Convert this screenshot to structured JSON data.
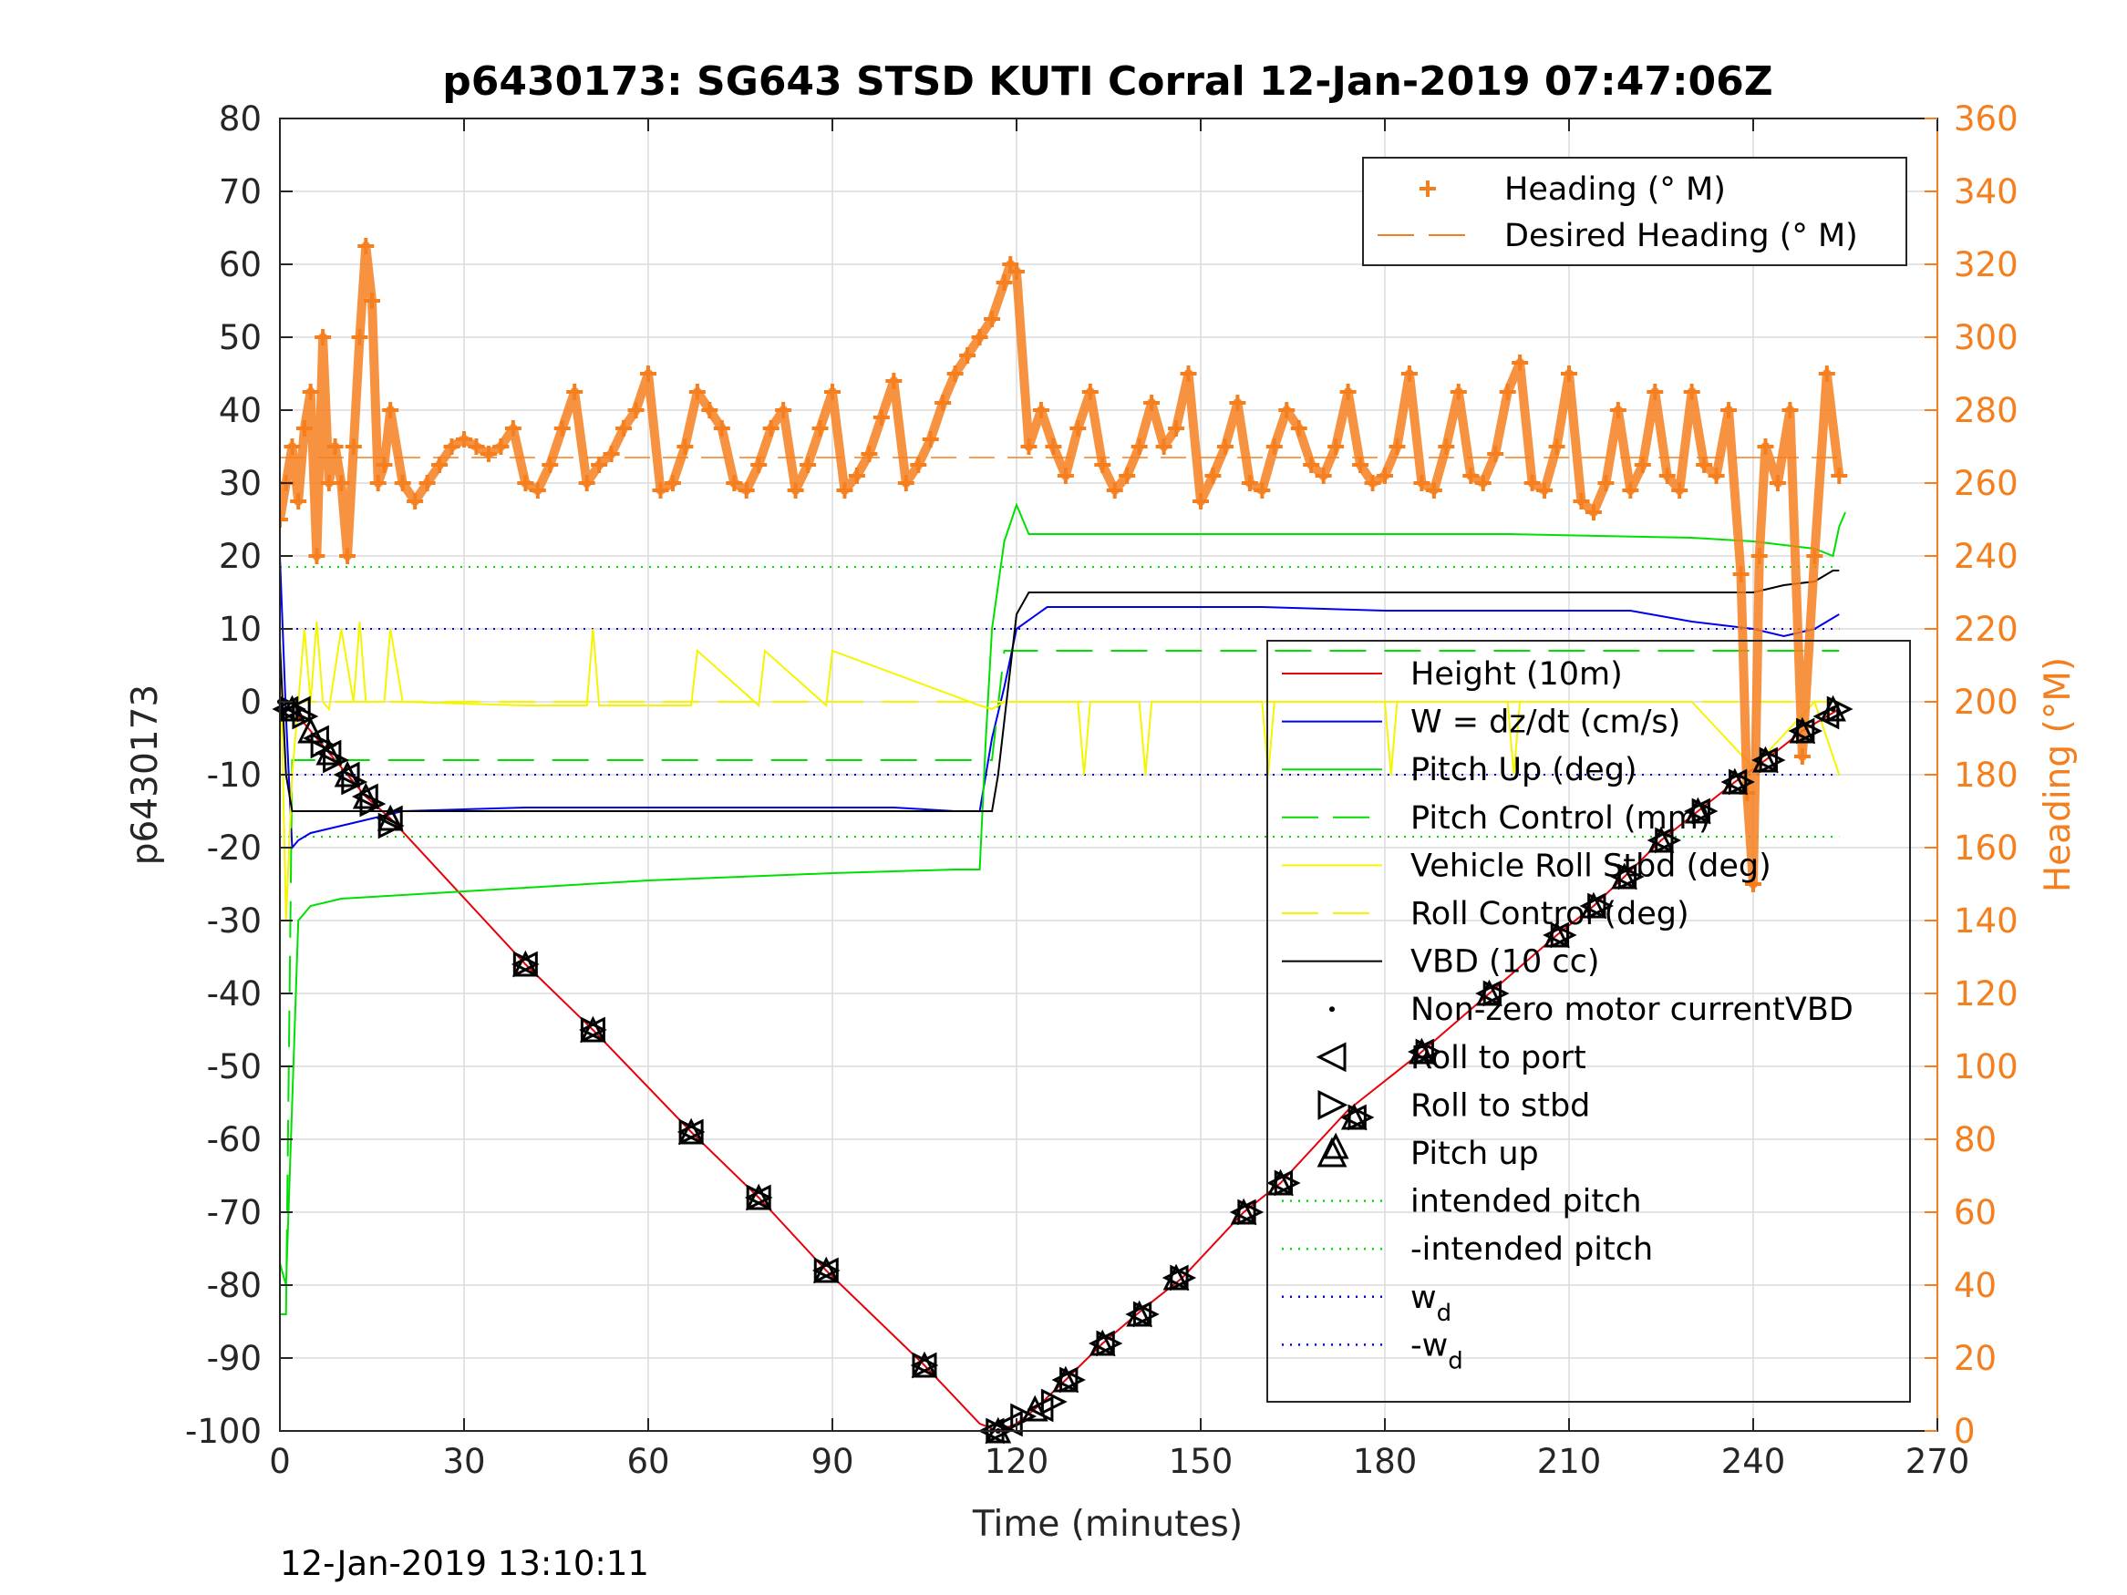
{
  "chart_data": {
    "type": "line",
    "title": "p6430173: SG643 STSD KUTI Corral 12-Jan-2019 07:47:06Z",
    "xlabel": "Time (minutes)",
    "ylabel": "p6430173",
    "ylabel_right": "Heading (°M)",
    "footer": "12-Jan-2019 13:10:11",
    "xlim": [
      0,
      270
    ],
    "ylim": [
      -100,
      80
    ],
    "ylim_right": [
      0,
      360
    ],
    "x_ticks": [
      "0",
      "30",
      "60",
      "90",
      "120",
      "150",
      "180",
      "210",
      "240",
      "270"
    ],
    "y_ticks": [
      "80",
      "70",
      "60",
      "50",
      "40",
      "30",
      "20",
      "10",
      "0",
      "-10",
      "-20",
      "-30",
      "-40",
      "-50",
      "-60",
      "-70",
      "-80",
      "-90",
      "-100"
    ],
    "y_ticks_right": [
      "360",
      "340",
      "320",
      "300",
      "280",
      "260",
      "240",
      "220",
      "200",
      "180",
      "160",
      "140",
      "120",
      "100",
      "80",
      "60",
      "40",
      "20",
      "0"
    ],
    "grid": true,
    "colors": {
      "heading": "#f47f1f",
      "height": "#e8000b",
      "w": "#0000ee",
      "pitch": "#00e000",
      "roll": "#f5f500",
      "vbd": "#000000",
      "axis_right": "#f47f1f"
    },
    "legends": [
      {
        "placement": "top-right",
        "entries": [
          {
            "label": "Heading (° M)",
            "style": "plus",
            "color": "#f47f1f"
          },
          {
            "label": "Desired Heading (° M)",
            "style": "dashed",
            "color": "#f47f1f"
          }
        ]
      },
      {
        "placement": "lower-right",
        "entries": [
          {
            "label": "Height (10m)",
            "style": "solid",
            "color": "#e8000b"
          },
          {
            "label": "W = dz/dt (cm/s)",
            "style": "solid",
            "color": "#0000ee"
          },
          {
            "label": "Pitch Up (deg)",
            "style": "solid",
            "color": "#00e000"
          },
          {
            "label": "Pitch Control (mm)",
            "style": "dashed",
            "color": "#00e000"
          },
          {
            "label": "Vehicle Roll Stbd (deg)",
            "style": "solid",
            "color": "#f5f500"
          },
          {
            "label": "Roll Control (deg)",
            "style": "dashed",
            "color": "#f5f500"
          },
          {
            "label": "VBD (10 cc)",
            "style": "solid",
            "color": "#000000"
          },
          {
            "label": "Non-zero motor currentVBD",
            "style": "dot",
            "color": "#000000"
          },
          {
            "label": "Roll to port",
            "style": "triangle-left",
            "color": "#000000"
          },
          {
            "label": "Roll to stbd",
            "style": "triangle-right",
            "color": "#000000"
          },
          {
            "label": "Pitch up",
            "style": "triangle-up",
            "color": "#000000"
          },
          {
            "label": "intended pitch",
            "style": "dotted",
            "color": "#00e000"
          },
          {
            "label": "-intended pitch",
            "style": "dotted",
            "color": "#00e000"
          },
          {
            "label": "w",
            "sub": "d",
            "style": "dotted",
            "color": "#0000ee"
          },
          {
            "label": "-w",
            "sub": "d",
            "style": "dotted",
            "color": "#0000ee"
          }
        ]
      }
    ],
    "reference_lines": {
      "intended_pitch": 18.5,
      "neg_intended_pitch": -18.5,
      "w_d": 10,
      "neg_w_d": -10,
      "desired_heading": 267
    },
    "series": [
      {
        "name": "Height (10m)",
        "axis": "left",
        "x": [
          0,
          2,
          5,
          8,
          11,
          14,
          18,
          40,
          51,
          67,
          78,
          89,
          105,
          114,
          117,
          120,
          123,
          128,
          134,
          141,
          147,
          157,
          163,
          174,
          186,
          197,
          208,
          214,
          219,
          225,
          231,
          237,
          242,
          248,
          252,
          254
        ],
        "y": [
          -1,
          -1,
          -4,
          -7,
          -10,
          -13,
          -16,
          -36,
          -45,
          -59,
          -68,
          -78,
          -91,
          -99,
          -100,
          -99,
          -97,
          -93,
          -88,
          -83,
          -79,
          -70,
          -66,
          -56,
          -48,
          -40,
          -32,
          -28,
          -24,
          -19,
          -15,
          -11,
          -8,
          -4,
          -2,
          -1
        ]
      },
      {
        "name": "W = dz/dt (cm/s)",
        "axis": "left",
        "x": [
          0,
          1,
          2,
          3,
          5,
          10,
          20,
          40,
          60,
          80,
          100,
          110,
          114,
          115,
          116,
          118,
          120,
          125,
          140,
          160,
          180,
          200,
          220,
          230,
          240,
          245,
          250,
          254
        ],
        "y": [
          20,
          -2,
          -20,
          -19,
          -18,
          -17,
          -15,
          -14.5,
          -14.5,
          -14.5,
          -14.5,
          -15,
          -15,
          -10,
          -5,
          2,
          10,
          13,
          13,
          13,
          12.5,
          12.5,
          12.5,
          11,
          10,
          9,
          10,
          12
        ]
      },
      {
        "name": "Pitch Up (deg)",
        "axis": "left",
        "x": [
          0,
          1,
          2,
          3,
          5,
          10,
          30,
          60,
          90,
          110,
          114,
          115,
          116,
          118,
          120,
          122,
          130,
          160,
          200,
          230,
          240,
          250,
          253,
          254,
          255
        ],
        "y": [
          -77,
          -80,
          -55,
          -30,
          -28,
          -27,
          -26,
          -24.5,
          -23.5,
          -23,
          -23,
          -5,
          10,
          22,
          27,
          23,
          23,
          23,
          23,
          22.5,
          22,
          21,
          20,
          24,
          26
        ]
      },
      {
        "name": "Pitch Control (mm)",
        "axis": "left",
        "x": [
          0,
          1,
          2,
          6,
          116,
          118,
          120,
          254
        ],
        "y": [
          -84,
          -84,
          -8,
          -8,
          -8,
          7,
          7,
          7
        ]
      },
      {
        "name": "Vehicle Roll Stbd (deg)",
        "axis": "left",
        "x": [
          0,
          1,
          2,
          3,
          4,
          5,
          6,
          7,
          8,
          10,
          12,
          13,
          14,
          17,
          18,
          20,
          40,
          50,
          51,
          52,
          67,
          68,
          78,
          79,
          89,
          90,
          114,
          116,
          118,
          120,
          130,
          131,
          132,
          140,
          141,
          142,
          160,
          161,
          162,
          180,
          181,
          182,
          200,
          201,
          202,
          230,
          240,
          250,
          254
        ],
        "y": [
          10,
          -30,
          -10,
          0,
          10,
          0,
          11,
          0,
          -1,
          10,
          0,
          11,
          0,
          0,
          10,
          0,
          -0.5,
          -0.5,
          10,
          -0.5,
          -0.5,
          7,
          -0.5,
          7,
          -0.5,
          7,
          -0.5,
          -1,
          0,
          0,
          0,
          -10,
          0,
          0,
          -10,
          0,
          0,
          -10,
          0,
          0,
          -10,
          0,
          0,
          -10,
          0,
          0,
          -9,
          0,
          -10
        ]
      },
      {
        "name": "Roll Control (deg)",
        "axis": "left",
        "x": [
          0,
          254
        ],
        "y": [
          0,
          0
        ]
      },
      {
        "name": "VBD (10 cc)",
        "axis": "left",
        "x": [
          0,
          1,
          2,
          116,
          117,
          120,
          122,
          130,
          230,
          240,
          245,
          250,
          253,
          254
        ],
        "y": [
          8,
          -10,
          -15,
          -15,
          -10,
          12,
          15,
          15,
          15,
          15,
          16,
          16.5,
          18,
          18
        ]
      },
      {
        "name": "Heading (° M)",
        "axis": "right",
        "x": [
          0,
          1,
          2,
          3,
          4,
          5,
          6,
          7,
          8,
          9,
          10,
          11,
          12,
          13,
          14,
          15,
          16,
          17,
          18,
          20,
          22,
          24,
          26,
          28,
          30,
          32,
          34,
          36,
          38,
          40,
          42,
          44,
          46,
          48,
          50,
          52,
          54,
          56,
          58,
          60,
          62,
          64,
          66,
          68,
          70,
          72,
          74,
          76,
          78,
          80,
          82,
          84,
          86,
          88,
          90,
          92,
          94,
          96,
          98,
          100,
          102,
          104,
          106,
          108,
          110,
          112,
          114,
          116,
          118,
          119,
          120,
          122,
          124,
          126,
          128,
          130,
          132,
          134,
          136,
          138,
          140,
          142,
          144,
          146,
          148,
          150,
          152,
          154,
          156,
          158,
          160,
          162,
          164,
          166,
          168,
          170,
          172,
          174,
          176,
          178,
          180,
          182,
          184,
          186,
          188,
          190,
          192,
          194,
          196,
          198,
          200,
          202,
          204,
          206,
          208,
          210,
          212,
          214,
          216,
          218,
          220,
          222,
          224,
          226,
          228,
          230,
          232,
          234,
          236,
          238,
          239,
          240,
          241,
          242,
          244,
          246,
          248,
          250,
          252,
          254
        ],
        "y": [
          250,
          260,
          270,
          255,
          275,
          285,
          240,
          300,
          260,
          270,
          260,
          240,
          270,
          300,
          325,
          310,
          260,
          265,
          280,
          260,
          255,
          260,
          265,
          270,
          272,
          270,
          268,
          270,
          275,
          260,
          258,
          265,
          275,
          285,
          260,
          265,
          268,
          275,
          280,
          290,
          258,
          260,
          270,
          285,
          280,
          275,
          260,
          258,
          265,
          275,
          280,
          258,
          265,
          275,
          285,
          258,
          262,
          268,
          278,
          288,
          260,
          265,
          272,
          282,
          290,
          295,
          300,
          305,
          315,
          320,
          318,
          270,
          280,
          270,
          262,
          275,
          285,
          265,
          258,
          262,
          270,
          282,
          270,
          275,
          290,
          255,
          262,
          270,
          282,
          260,
          258,
          270,
          280,
          275,
          265,
          262,
          270,
          285,
          265,
          260,
          262,
          270,
          290,
          260,
          258,
          270,
          285,
          262,
          260,
          268,
          285,
          293,
          260,
          258,
          270,
          290,
          255,
          252,
          260,
          280,
          258,
          265,
          285,
          262,
          258,
          285,
          265,
          262,
          280,
          235,
          175,
          150,
          240,
          270,
          260,
          280,
          185,
          240,
          290,
          262
        ]
      }
    ],
    "markers": {
      "roll_to_port": [
        [
          1,
          -1
        ],
        [
          3,
          -1
        ],
        [
          6,
          -5
        ],
        [
          8,
          -7
        ],
        [
          11,
          -10
        ],
        [
          14,
          -13
        ],
        [
          18,
          -16
        ],
        [
          40,
          -36
        ],
        [
          51,
          -45
        ],
        [
          67,
          -59
        ],
        [
          78,
          -68
        ],
        [
          89,
          -78
        ],
        [
          105,
          -91
        ],
        [
          116,
          -100
        ],
        [
          119,
          -99
        ],
        [
          124,
          -97
        ],
        [
          128,
          -93
        ],
        [
          134,
          -88
        ],
        [
          140,
          -84
        ],
        [
          146,
          -79
        ],
        [
          157,
          -70
        ],
        [
          163,
          -66
        ],
        [
          175,
          -57
        ],
        [
          186,
          -48
        ],
        [
          197,
          -40
        ],
        [
          208,
          -32
        ],
        [
          214,
          -28
        ],
        [
          219,
          -24
        ],
        [
          225,
          -19
        ],
        [
          231,
          -15
        ],
        [
          237,
          -11
        ],
        [
          242,
          -8
        ],
        [
          248,
          -4
        ],
        [
          252,
          -2
        ]
      ],
      "roll_to_stbd": [
        [
          2,
          -1
        ],
        [
          4,
          -2
        ],
        [
          7,
          -6
        ],
        [
          9,
          -8
        ],
        [
          12,
          -11
        ],
        [
          15,
          -14
        ],
        [
          18,
          -17
        ],
        [
          40,
          -36
        ],
        [
          51,
          -45
        ],
        [
          67,
          -59
        ],
        [
          78,
          -68
        ],
        [
          89,
          -78
        ],
        [
          105,
          -91
        ],
        [
          117,
          -100
        ],
        [
          121,
          -98
        ],
        [
          126,
          -96
        ],
        [
          129,
          -93
        ],
        [
          135,
          -88
        ],
        [
          141,
          -84
        ],
        [
          147,
          -79
        ],
        [
          158,
          -70
        ],
        [
          164,
          -66
        ],
        [
          176,
          -57
        ],
        [
          187,
          -48
        ],
        [
          198,
          -40
        ],
        [
          209,
          -32
        ],
        [
          215,
          -28
        ],
        [
          220,
          -24
        ],
        [
          226,
          -19
        ],
        [
          232,
          -15
        ],
        [
          238,
          -11
        ],
        [
          243,
          -8
        ],
        [
          249,
          -4
        ],
        [
          254,
          -1
        ]
      ],
      "pitch_up": [
        [
          2,
          -1
        ],
        [
          5,
          -4
        ],
        [
          8,
          -7
        ],
        [
          11,
          -10
        ],
        [
          14,
          -13
        ],
        [
          18,
          -16
        ],
        [
          40,
          -36
        ],
        [
          51,
          -45
        ],
        [
          67,
          -59
        ],
        [
          78,
          -68
        ],
        [
          89,
          -78
        ],
        [
          105,
          -91
        ],
        [
          117,
          -100
        ],
        [
          123,
          -97
        ],
        [
          128,
          -93
        ],
        [
          134,
          -88
        ],
        [
          140,
          -84
        ],
        [
          146,
          -79
        ],
        [
          157,
          -70
        ],
        [
          163,
          -66
        ],
        [
          172,
          -61
        ],
        [
          175,
          -57
        ],
        [
          186,
          -48
        ],
        [
          197,
          -40
        ],
        [
          208,
          -32
        ],
        [
          214,
          -28
        ],
        [
          219,
          -24
        ],
        [
          225,
          -19
        ],
        [
          231,
          -15
        ],
        [
          237,
          -11
        ],
        [
          242,
          -8
        ],
        [
          248,
          -4
        ],
        [
          253,
          -1
        ]
      ],
      "vbd_motor": [
        [
          0,
          0
        ],
        [
          1,
          -1
        ],
        [
          116,
          -100
        ],
        [
          117,
          -100
        ],
        [
          253,
          -1
        ]
      ]
    }
  }
}
